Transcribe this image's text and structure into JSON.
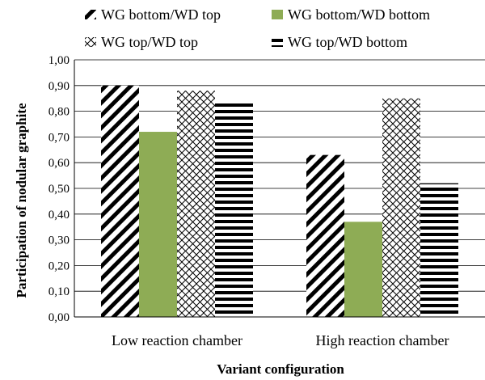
{
  "chart_data": {
    "type": "bar",
    "categories": [
      "Low reaction chamber",
      "High reaction chamber"
    ],
    "series": [
      {
        "name": "WG bottom/WD top",
        "values": [
          0.9,
          0.63
        ],
        "pattern": "diagonal"
      },
      {
        "name": "WG bottom/WD bottom",
        "values": [
          0.72,
          0.37
        ],
        "pattern": "solid",
        "color": "#8eac55"
      },
      {
        "name": "WG top/WD top",
        "values": [
          0.88,
          0.85
        ],
        "pattern": "crosshatch"
      },
      {
        "name": "WG top/WD bottom",
        "values": [
          0.84,
          0.52
        ],
        "pattern": "horizontal"
      }
    ],
    "ylim": [
      0,
      1
    ],
    "yticks": [
      "0,00",
      "0,10",
      "0,20",
      "0,30",
      "0,40",
      "0,50",
      "0,60",
      "0,70",
      "0,80",
      "0,90",
      "1,00"
    ],
    "xlabel": "Variant configuration",
    "ylabel": "Participation of nodular graphite",
    "grid": true,
    "legend": "top"
  }
}
